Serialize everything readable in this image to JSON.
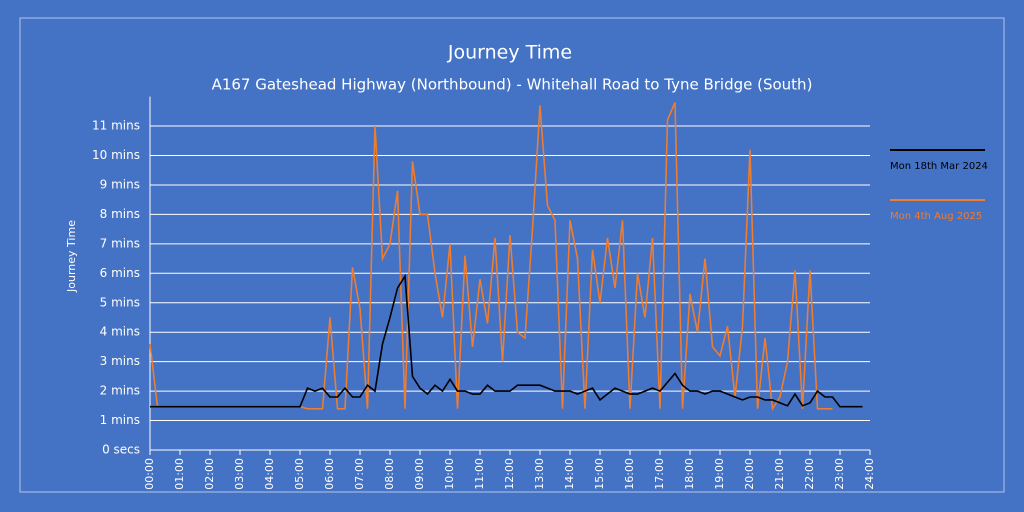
{
  "chart_data": {
    "type": "line",
    "title": "Journey Time",
    "subtitle": "A167 Gateshead Highway (Northbound) - Whitehall Road to Tyne Bridge (South)",
    "y_label": "Journey Time",
    "x": [
      0,
      0.25,
      0.5,
      0.75,
      1,
      1.25,
      1.5,
      1.75,
      2,
      2.25,
      2.5,
      2.75,
      3,
      3.25,
      3.5,
      3.75,
      4,
      4.25,
      4.5,
      4.75,
      5,
      5.25,
      5.5,
      5.75,
      6,
      6.25,
      6.5,
      6.75,
      7,
      7.25,
      7.5,
      7.75,
      8,
      8.25,
      8.5,
      8.75,
      9,
      9.25,
      9.5,
      9.75,
      10,
      10.25,
      10.5,
      10.75,
      11,
      11.25,
      11.5,
      11.75,
      12,
      12.25,
      12.5,
      12.75,
      13,
      13.25,
      13.5,
      13.75,
      14,
      14.25,
      14.5,
      14.75,
      15,
      15.25,
      15.5,
      15.75,
      16,
      16.25,
      16.5,
      16.75,
      17,
      17.25,
      17.5,
      17.75,
      18,
      18.25,
      18.5,
      18.75,
      19,
      19.25,
      19.5,
      19.75,
      20,
      20.25,
      20.5,
      20.75,
      21,
      21.25,
      21.5,
      21.75,
      22,
      22.25,
      22.5,
      22.75,
      23,
      23.25,
      23.5,
      23.75
    ],
    "series": [
      {
        "name": "Mon 18th Mar 2024",
        "color": "#000000",
        "values": [
          1.47,
          1.47,
          1.47,
          1.47,
          1.47,
          1.47,
          1.47,
          1.47,
          1.47,
          1.47,
          1.47,
          1.47,
          1.47,
          1.47,
          1.47,
          1.47,
          1.47,
          1.47,
          1.47,
          1.47,
          1.47,
          2.1,
          2.0,
          2.1,
          1.8,
          1.8,
          2.1,
          1.8,
          1.8,
          2.2,
          2.0,
          3.6,
          4.5,
          5.5,
          5.9,
          2.5,
          2.1,
          1.9,
          2.2,
          2.0,
          2.4,
          2.0,
          2.0,
          1.9,
          1.9,
          2.2,
          2.0,
          2.0,
          2.0,
          2.2,
          2.2,
          2.2,
          2.2,
          2.1,
          2.0,
          2.0,
          2.0,
          1.9,
          2.0,
          2.1,
          1.7,
          1.9,
          2.1,
          2.0,
          1.9,
          1.9,
          2.0,
          2.1,
          2.0,
          2.3,
          2.6,
          2.2,
          2.0,
          2.0,
          1.9,
          2.0,
          2.0,
          1.9,
          1.8,
          1.7,
          1.8,
          1.8,
          1.7,
          1.7,
          1.6,
          1.5,
          1.9,
          1.5,
          1.6,
          2.0,
          1.8,
          1.8,
          1.47,
          1.47,
          1.47,
          1.47
        ]
      },
      {
        "name": "Mon 4th Aug 2025",
        "color": "#ed7d31",
        "values": [
          3.6,
          1.47,
          1.47,
          1.47,
          1.47,
          1.47,
          1.47,
          1.47,
          1.47,
          1.47,
          1.47,
          1.47,
          1.47,
          1.47,
          1.47,
          1.47,
          1.47,
          1.47,
          1.47,
          1.47,
          1.47,
          1.4,
          1.4,
          1.4,
          4.5,
          1.4,
          1.4,
          6.2,
          4.8,
          1.4,
          11.0,
          6.5,
          7.0,
          8.8,
          1.4,
          9.8,
          8.0,
          8.0,
          6.0,
          4.5,
          7.0,
          1.4,
          6.6,
          3.5,
          5.8,
          4.3,
          7.2,
          3.0,
          7.3,
          4.0,
          3.8,
          7.5,
          11.7,
          8.3,
          7.8,
          1.4,
          7.8,
          6.5,
          1.4,
          6.8,
          5.0,
          7.2,
          5.5,
          7.8,
          1.4,
          6.0,
          4.5,
          7.2,
          1.4,
          11.2,
          11.8,
          1.4,
          5.3,
          4.0,
          6.5,
          3.5,
          3.2,
          4.2,
          1.8,
          4.2,
          10.2,
          1.4,
          3.8,
          1.4,
          1.8,
          3.0,
          6.1,
          1.4,
          6.1,
          1.4,
          1.4,
          1.4,
          null,
          null,
          null,
          null
        ]
      }
    ],
    "xlim": [
      0,
      24
    ],
    "xticks": [
      {
        "value": 0,
        "label": "00:00"
      },
      {
        "value": 1,
        "label": "01:00"
      },
      {
        "value": 2,
        "label": "02:00"
      },
      {
        "value": 3,
        "label": "03:00"
      },
      {
        "value": 4,
        "label": "04:00"
      },
      {
        "value": 5,
        "label": "05:00"
      },
      {
        "value": 6,
        "label": "06:00"
      },
      {
        "value": 7,
        "label": "07:00"
      },
      {
        "value": 8,
        "label": "08:00"
      },
      {
        "value": 9,
        "label": "09:00"
      },
      {
        "value": 10,
        "label": "10:00"
      },
      {
        "value": 11,
        "label": "11:00"
      },
      {
        "value": 12,
        "label": "12:00"
      },
      {
        "value": 13,
        "label": "13:00"
      },
      {
        "value": 14,
        "label": "14:00"
      },
      {
        "value": 15,
        "label": "15:00"
      },
      {
        "value": 16,
        "label": "16:00"
      },
      {
        "value": 17,
        "label": "17:00"
      },
      {
        "value": 18,
        "label": "18:00"
      },
      {
        "value": 19,
        "label": "19:00"
      },
      {
        "value": 20,
        "label": "20:00"
      },
      {
        "value": 21,
        "label": "21:00"
      },
      {
        "value": 22,
        "label": "22:00"
      },
      {
        "value": 23,
        "label": "23:00"
      },
      {
        "value": 24,
        "label": "24:00"
      }
    ],
    "ylim": [
      0,
      12
    ],
    "yticks": [
      {
        "value": 0,
        "label": "0 secs"
      },
      {
        "value": 1,
        "label": "1 mins"
      },
      {
        "value": 2,
        "label": "2 mins"
      },
      {
        "value": 3,
        "label": "3 mins"
      },
      {
        "value": 4,
        "label": "4 mins"
      },
      {
        "value": 5,
        "label": "5 mins"
      },
      {
        "value": 6,
        "label": "6 mins"
      },
      {
        "value": 7,
        "label": "7 mins"
      },
      {
        "value": 8,
        "label": "8 mins"
      },
      {
        "value": 9,
        "label": "9 mins"
      },
      {
        "value": 10,
        "label": "10 mins"
      },
      {
        "value": 11,
        "label": "11 mins"
      }
    ],
    "grid": true,
    "legend": "right"
  }
}
